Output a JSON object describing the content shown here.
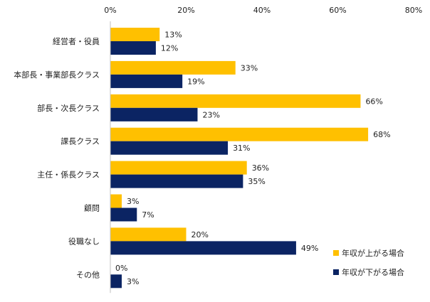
{
  "chart_data": {
    "type": "bar",
    "orientation": "horizontal",
    "categories": [
      "経営者・役員",
      "本部長・事業部長クラス",
      "部長・次長クラス",
      "課長クラス",
      "主任・係長クラス",
      "顧問",
      "役職なし",
      "その他"
    ],
    "series": [
      {
        "name": "年収が上がる場合",
        "values": [
          13,
          33,
          66,
          68,
          36,
          3,
          20,
          0
        ],
        "color": "#FFC000"
      },
      {
        "name": "年収が下がる場合",
        "values": [
          12,
          19,
          23,
          31,
          35,
          7,
          49,
          3
        ],
        "color": "#0B2463"
      }
    ],
    "x_ticks": [
      "0%",
      "20%",
      "40%",
      "60%",
      "80%"
    ],
    "xlim": [
      0,
      80
    ],
    "value_suffix": "%",
    "legend_position": "bottom-right",
    "grid": false
  }
}
